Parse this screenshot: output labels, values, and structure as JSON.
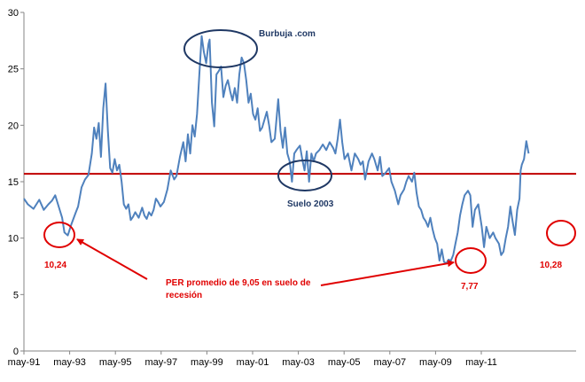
{
  "chart_data": {
    "type": "line",
    "title": "",
    "xlabel": "",
    "ylabel": "",
    "ylim": [
      0,
      30
    ],
    "y_ticks": [
      0,
      5,
      10,
      15,
      20,
      25,
      30
    ],
    "x_tick_labels": [
      "may-91",
      "may-93",
      "may-95",
      "may-97",
      "may-99",
      "may-01",
      "may-03",
      "may-05",
      "may-07",
      "may-09",
      "may-11"
    ],
    "x_range_years": [
      1991.33,
      2012.5
    ],
    "grid": false,
    "legend": "none",
    "colors": {
      "series": "#4f81bd",
      "reference": "#c00000",
      "ellipse_dark": "#1f3864",
      "ellipse_red": "#e00000",
      "text_red": "#e00000"
    },
    "reference_line": {
      "value": 15.7,
      "label": ""
    },
    "series": [
      {
        "points": [
          [
            1991.33,
            13.5
          ],
          [
            1991.5,
            13.0
          ],
          [
            1991.75,
            12.6
          ],
          [
            1992.0,
            13.4
          ],
          [
            1992.2,
            12.5
          ],
          [
            1992.4,
            13.0
          ],
          [
            1992.55,
            13.3
          ],
          [
            1992.7,
            13.8
          ],
          [
            1992.85,
            12.8
          ],
          [
            1993.0,
            11.8
          ],
          [
            1993.1,
            10.5
          ],
          [
            1993.25,
            10.24
          ],
          [
            1993.4,
            11.2
          ],
          [
            1993.6,
            12.3
          ],
          [
            1993.7,
            12.8
          ],
          [
            1993.85,
            14.5
          ],
          [
            1994.0,
            15.2
          ],
          [
            1994.15,
            15.6
          ],
          [
            1994.3,
            17.5
          ],
          [
            1994.4,
            19.8
          ],
          [
            1994.5,
            18.8
          ],
          [
            1994.6,
            20.2
          ],
          [
            1994.7,
            17.2
          ],
          [
            1994.8,
            21.5
          ],
          [
            1994.9,
            23.7
          ],
          [
            1995.0,
            19.5
          ],
          [
            1995.1,
            16.2
          ],
          [
            1995.2,
            15.8
          ],
          [
            1995.3,
            17.0
          ],
          [
            1995.4,
            16.0
          ],
          [
            1995.5,
            16.5
          ],
          [
            1995.6,
            15.0
          ],
          [
            1995.7,
            13.0
          ],
          [
            1995.8,
            12.6
          ],
          [
            1995.9,
            13.0
          ],
          [
            1996.0,
            11.6
          ],
          [
            1996.1,
            11.9
          ],
          [
            1996.2,
            12.3
          ],
          [
            1996.35,
            11.8
          ],
          [
            1996.5,
            12.7
          ],
          [
            1996.6,
            12.0
          ],
          [
            1996.7,
            11.7
          ],
          [
            1996.8,
            12.3
          ],
          [
            1996.9,
            12.0
          ],
          [
            1997.0,
            12.5
          ],
          [
            1997.1,
            13.5
          ],
          [
            1997.2,
            13.2
          ],
          [
            1997.3,
            12.8
          ],
          [
            1997.45,
            13.2
          ],
          [
            1997.6,
            14.3
          ],
          [
            1997.75,
            16.0
          ],
          [
            1997.9,
            15.2
          ],
          [
            1998.0,
            15.5
          ],
          [
            1998.15,
            17.2
          ],
          [
            1998.3,
            18.5
          ],
          [
            1998.4,
            16.8
          ],
          [
            1998.5,
            19.2
          ],
          [
            1998.6,
            17.5
          ],
          [
            1998.7,
            20.0
          ],
          [
            1998.8,
            19.0
          ],
          [
            1998.9,
            21.0
          ],
          [
            1999.0,
            24.5
          ],
          [
            1999.1,
            27.9
          ],
          [
            1999.2,
            26.5
          ],
          [
            1999.3,
            25.5
          ],
          [
            1999.4,
            27.2
          ],
          [
            1999.45,
            27.6
          ],
          [
            1999.55,
            22.0
          ],
          [
            1999.65,
            19.9
          ],
          [
            1999.75,
            24.5
          ],
          [
            1999.85,
            24.8
          ],
          [
            1999.95,
            25.2
          ],
          [
            2000.05,
            22.5
          ],
          [
            2000.15,
            23.5
          ],
          [
            2000.25,
            24.0
          ],
          [
            2000.35,
            23.0
          ],
          [
            2000.45,
            22.2
          ],
          [
            2000.55,
            23.3
          ],
          [
            2000.65,
            22.0
          ],
          [
            2000.75,
            24.5
          ],
          [
            2000.85,
            26.0
          ],
          [
            2000.95,
            25.5
          ],
          [
            2001.05,
            24.0
          ],
          [
            2001.15,
            22.0
          ],
          [
            2001.25,
            22.8
          ],
          [
            2001.35,
            21.0
          ],
          [
            2001.45,
            20.5
          ],
          [
            2001.55,
            21.5
          ],
          [
            2001.65,
            19.5
          ],
          [
            2001.75,
            19.8
          ],
          [
            2001.85,
            20.5
          ],
          [
            2001.95,
            21.2
          ],
          [
            2002.05,
            20.0
          ],
          [
            2002.15,
            18.5
          ],
          [
            2002.3,
            18.8
          ],
          [
            2002.45,
            22.3
          ],
          [
            2002.55,
            19.5
          ],
          [
            2002.65,
            18.0
          ],
          [
            2002.75,
            19.8
          ],
          [
            2002.85,
            17.5
          ],
          [
            2002.95,
            16.8
          ],
          [
            2003.05,
            15.0
          ],
          [
            2003.15,
            17.5
          ],
          [
            2003.25,
            17.8
          ],
          [
            2003.4,
            18.2
          ],
          [
            2003.5,
            17.0
          ],
          [
            2003.6,
            16.0
          ],
          [
            2003.7,
            17.7
          ],
          [
            2003.8,
            15.0
          ],
          [
            2003.9,
            17.5
          ],
          [
            2004.0,
            16.8
          ],
          [
            2004.1,
            17.5
          ],
          [
            2004.25,
            17.8
          ],
          [
            2004.4,
            18.3
          ],
          [
            2004.55,
            17.8
          ],
          [
            2004.7,
            18.5
          ],
          [
            2004.85,
            18.0
          ],
          [
            2004.95,
            17.5
          ],
          [
            2005.05,
            18.8
          ],
          [
            2005.15,
            20.5
          ],
          [
            2005.25,
            18.5
          ],
          [
            2005.35,
            17.0
          ],
          [
            2005.5,
            17.5
          ],
          [
            2005.65,
            16.0
          ],
          [
            2005.8,
            17.5
          ],
          [
            2005.95,
            17.0
          ],
          [
            2006.05,
            16.5
          ],
          [
            2006.15,
            16.8
          ],
          [
            2006.25,
            15.2
          ],
          [
            2006.4,
            16.8
          ],
          [
            2006.55,
            17.5
          ],
          [
            2006.65,
            17.0
          ],
          [
            2006.8,
            16.0
          ],
          [
            2006.9,
            17.2
          ],
          [
            2007.0,
            15.5
          ],
          [
            2007.15,
            15.8
          ],
          [
            2007.3,
            16.2
          ],
          [
            2007.4,
            15.0
          ],
          [
            2007.55,
            14.2
          ],
          [
            2007.7,
            13.0
          ],
          [
            2007.8,
            13.8
          ],
          [
            2007.95,
            14.3
          ],
          [
            2008.05,
            15.0
          ],
          [
            2008.15,
            15.5
          ],
          [
            2008.3,
            15.0
          ],
          [
            2008.4,
            15.8
          ],
          [
            2008.5,
            14.0
          ],
          [
            2008.6,
            12.8
          ],
          [
            2008.7,
            12.5
          ],
          [
            2008.8,
            11.8
          ],
          [
            2008.9,
            11.5
          ],
          [
            2009.0,
            11.0
          ],
          [
            2009.1,
            11.8
          ],
          [
            2009.2,
            10.8
          ],
          [
            2009.3,
            10.0
          ],
          [
            2009.4,
            9.5
          ],
          [
            2009.5,
            8.0
          ],
          [
            2009.6,
            9.0
          ],
          [
            2009.7,
            7.9
          ],
          [
            2009.8,
            7.77
          ],
          [
            2009.9,
            8.1
          ],
          [
            2010.0,
            8.0
          ],
          [
            2010.1,
            8.5
          ],
          [
            2010.2,
            9.5
          ],
          [
            2010.3,
            10.5
          ],
          [
            2010.4,
            12.0
          ],
          [
            2010.5,
            13.0
          ],
          [
            2010.6,
            13.8
          ],
          [
            2010.75,
            14.2
          ],
          [
            2010.85,
            13.8
          ],
          [
            2010.95,
            11.0
          ],
          [
            2011.05,
            12.5
          ],
          [
            2011.2,
            13.0
          ],
          [
            2011.35,
            11.0
          ],
          [
            2011.45,
            9.2
          ],
          [
            2011.55,
            11.0
          ],
          [
            2011.7,
            10.0
          ],
          [
            2011.85,
            10.5
          ],
          [
            2011.95,
            10.0
          ],
          [
            2012.1,
            9.5
          ],
          [
            2012.2,
            8.5
          ],
          [
            2012.3,
            8.8
          ],
          [
            2012.4,
            10.0
          ],
          [
            2012.5,
            11.0
          ],
          [
            2012.6,
            12.8
          ],
          [
            2012.7,
            11.5
          ],
          [
            2012.8,
            10.28
          ],
          [
            2012.9,
            12.5
          ],
          [
            2013.0,
            13.5
          ],
          [
            2013.05,
            16.0
          ],
          [
            2013.1,
            16.5
          ],
          [
            2013.2,
            17.0
          ],
          [
            2013.3,
            18.6
          ],
          [
            2013.4,
            17.5
          ]
        ]
      }
    ],
    "annotations": [
      {
        "text": "Burbuja .com",
        "color": "dark"
      },
      {
        "text": "Suelo 2003",
        "color": "dark"
      },
      {
        "text": "10,24",
        "color": "red"
      },
      {
        "text": "7,77",
        "color": "red"
      },
      {
        "text": "10,28",
        "color": "red"
      },
      {
        "text": "PER promedio de 9,05 en suelo de recesión",
        "color": "red"
      }
    ]
  }
}
